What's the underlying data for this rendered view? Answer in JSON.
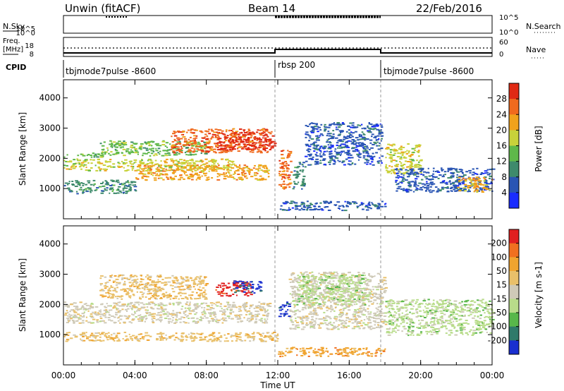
{
  "header": {
    "station": "Unwin (fitACF)",
    "beam": "Beam 14",
    "date": "22/Feb/2016"
  },
  "status_panel": {
    "left_labels": {
      "nsky": "N.Sky",
      "freq": "Freq.",
      "freq_unit": "[MHz]",
      "cpid": "CPID"
    },
    "right_labels": {
      "nsearch": "N.Search",
      "nave": "Nave"
    },
    "noise_ticks_left": [
      "10^5",
      "10^0"
    ],
    "noise_ticks_right": [
      "10^5",
      "10^0"
    ],
    "freq_ticks": [
      "18",
      "8"
    ],
    "nave_ticks": [
      "60",
      "0"
    ],
    "cpid_segments": [
      {
        "label": "tbjmode7pulse -8600",
        "start_hour": 0,
        "end_hour": 12
      },
      {
        "label": "rbsp 200",
        "start_hour": 12,
        "end_hour": 18
      },
      {
        "label": "tbjmode7pulse -8600",
        "start_hour": 18,
        "end_hour": 24
      }
    ]
  },
  "x_axis": {
    "title": "Time UT",
    "ticks": [
      "00:00",
      "04:00",
      "08:00",
      "12:00",
      "16:00",
      "20:00",
      "00:00"
    ],
    "tick_hours": [
      0,
      4,
      8,
      12,
      16,
      20,
      24
    ]
  },
  "colors": {
    "power": [
      "#1a2cff",
      "#2a55b4",
      "#3e8a6c",
      "#5fb84a",
      "#c8d23a",
      "#f0a21c",
      "#f06a1e",
      "#e02a14"
    ],
    "velocity": [
      "#1a2fcf",
      "#2f7a6a",
      "#58b74a",
      "#b8dc8a",
      "#cfcab8",
      "#e9c06a",
      "#f0a430",
      "#f07020",
      "#e02020"
    ]
  },
  "chart_data": [
    {
      "type": "heatmap",
      "title": "Power",
      "ylabel": "Slant Range [km]",
      "xlabel": "",
      "x_range_hours": [
        0,
        24
      ],
      "ylim": [
        0,
        4600
      ],
      "yticks": [
        1000,
        2000,
        3000,
        4000
      ],
      "colorbar": {
        "label": "Power [dB]",
        "ticks": [
          "28",
          "24",
          "20",
          "16",
          "12",
          "8",
          "4"
        ],
        "range": [
          0,
          32
        ]
      },
      "regions": [
        {
          "t": [
            0,
            2.3
          ],
          "r": [
            2050,
            2200
          ],
          "level": 3
        },
        {
          "t": [
            0,
            9.5
          ],
          "r": [
            1600,
            2000
          ],
          "level": 4
        },
        {
          "t": [
            2,
            8
          ],
          "r": [
            2100,
            2600
          ],
          "level": 3
        },
        {
          "t": [
            4,
            11.5
          ],
          "r": [
            1300,
            1800
          ],
          "level": 5
        },
        {
          "t": [
            6,
            11.5
          ],
          "r": [
            2200,
            3000
          ],
          "level": 6
        },
        {
          "t": [
            8.5,
            11.8
          ],
          "r": [
            2300,
            2900
          ],
          "level": 7
        },
        {
          "t": [
            0,
            4
          ],
          "r": [
            850,
            1300
          ],
          "level": 2
        },
        {
          "t": [
            12,
            12.7
          ],
          "r": [
            1000,
            2300
          ],
          "level": 6
        },
        {
          "t": [
            12.8,
            13.5
          ],
          "r": [
            1000,
            1900
          ],
          "level": 2
        },
        {
          "t": [
            13.5,
            17.8
          ],
          "r": [
            1800,
            3200
          ],
          "level": 1
        },
        {
          "t": [
            12,
            18
          ],
          "r": [
            300,
            600
          ],
          "level": 1
        },
        {
          "t": [
            18,
            20
          ],
          "r": [
            1500,
            2500
          ],
          "level": 4
        },
        {
          "t": [
            18.5,
            24
          ],
          "r": [
            900,
            1700
          ],
          "level": 1
        },
        {
          "t": [
            22,
            24
          ],
          "r": [
            900,
            1400
          ],
          "level": 5
        }
      ]
    },
    {
      "type": "heatmap",
      "title": "Velocity",
      "ylabel": "Slant Range [km]",
      "xlabel": "Time UT",
      "x_range_hours": [
        0,
        24
      ],
      "ylim": [
        0,
        4600
      ],
      "yticks": [
        1000,
        2000,
        3000,
        4000
      ],
      "colorbar": {
        "label": "Velocity [m s-1]",
        "ticks": [
          "200",
          "100",
          "50",
          "15",
          "-15",
          "-50",
          "-100",
          "-200"
        ],
        "range": [
          -250,
          250
        ]
      },
      "regions": [
        {
          "t": [
            0,
            11.5
          ],
          "r": [
            1400,
            2100
          ],
          "level": 4
        },
        {
          "t": [
            2,
            8
          ],
          "r": [
            2200,
            3000
          ],
          "level": 5
        },
        {
          "t": [
            8.5,
            10.5
          ],
          "r": [
            2300,
            2800
          ],
          "level": 8
        },
        {
          "t": [
            9.5,
            11
          ],
          "r": [
            2400,
            2800
          ],
          "level": 0
        },
        {
          "t": [
            12,
            12.6
          ],
          "r": [
            1600,
            2100
          ],
          "level": 0
        },
        {
          "t": [
            12.6,
            18
          ],
          "r": [
            1200,
            3100
          ],
          "level": 4
        },
        {
          "t": [
            13,
            17
          ],
          "r": [
            2000,
            3000
          ],
          "level": 3
        },
        {
          "t": [
            18,
            24
          ],
          "r": [
            1000,
            2200
          ],
          "level": 3
        },
        {
          "t": [
            0,
            12
          ],
          "r": [
            800,
            1100
          ],
          "level": 5
        },
        {
          "t": [
            12,
            18
          ],
          "r": [
            300,
            600
          ],
          "level": 6
        }
      ]
    }
  ]
}
